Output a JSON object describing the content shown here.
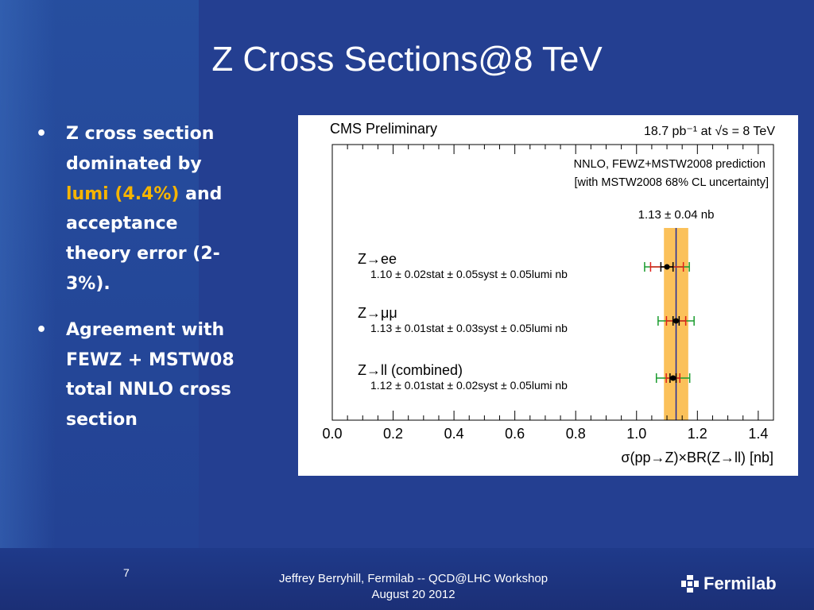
{
  "slide": {
    "title": "Z Cross Sections@8 TeV",
    "page_number": "7",
    "footer_line1": "Jeffrey Berryhill, Fermilab -- QCD@LHC Workshop",
    "footer_line2": "August 20 2012",
    "logo_text": "Fermilab",
    "logo_icon": "fermilab-logo-icon"
  },
  "bullets": [
    {
      "text_before": "Z cross section dominated by ",
      "highlight": "lumi (4.4%)",
      "text_after": " and acceptance theory error (2-3%)."
    },
    {
      "text_before": "Agreement with FEWZ + MSTW08 total NNLO cross section",
      "highlight": "",
      "text_after": ""
    }
  ],
  "colors": {
    "background": "#243f91",
    "highlight": "#f5b400",
    "theory_band": "#fbc15a",
    "theory_line": "#1f2a9c",
    "stat_color": "#000000",
    "syst_color": "#e0201b",
    "lumi_color": "#1a9c2e"
  },
  "chart_data": {
    "type": "scatter",
    "header_left": "CMS Preliminary",
    "header_right": "18.7 pb⁻¹  at  √s = 8 TeV",
    "theory_label_1": "NNLO, FEWZ+MSTW2008 prediction",
    "theory_label_2": "[with MSTW2008 68% CL uncertainty]",
    "theory_value_label": "1.13 ± 0.04 nb",
    "theory": {
      "central": 1.13,
      "uncertainty": 0.04
    },
    "xlabel": "σ(pp→Z)×BR(Z→ll) [nb]",
    "xlim": [
      0.0,
      1.45
    ],
    "xticks": [
      "0.0",
      "0.2",
      "0.4",
      "0.6",
      "0.8",
      "1.0",
      "1.2",
      "1.4"
    ],
    "grid": false,
    "measurements": [
      {
        "label": "Z→ee",
        "value_text": "1.10 ± 0.02stat ± 0.05syst ± 0.05lumi nb",
        "value": 1.1,
        "stat": 0.02,
        "syst": 0.05,
        "lumi": 0.05
      },
      {
        "label": "Z→μμ",
        "value_text": "1.13 ± 0.01stat ± 0.03syst ± 0.05lumi nb",
        "value": 1.13,
        "stat": 0.01,
        "syst": 0.03,
        "lumi": 0.05
      },
      {
        "label": "Z→ll (combined)",
        "value_text": "1.12 ± 0.01stat ± 0.02syst ± 0.05lumi nb",
        "value": 1.12,
        "stat": 0.01,
        "syst": 0.02,
        "lumi": 0.05
      }
    ]
  }
}
